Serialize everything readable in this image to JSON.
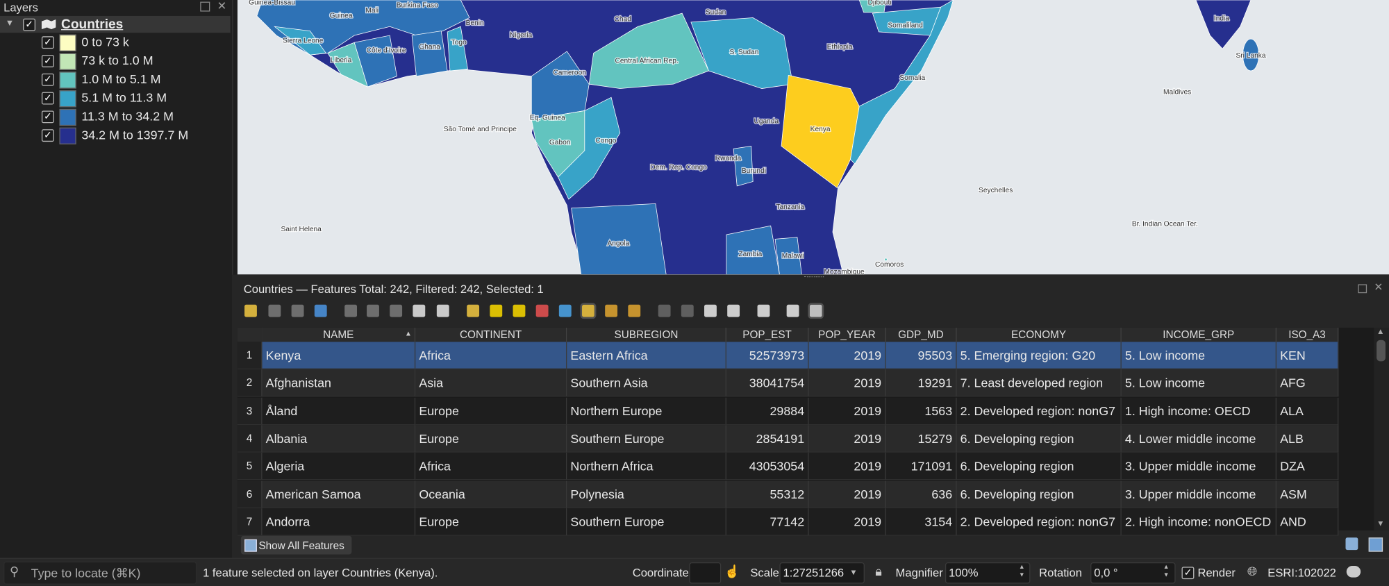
{
  "layers_panel": {
    "title": "Layers",
    "layer": "Countries",
    "legend": [
      {
        "label": "0 to 73 k",
        "color": "#fdfdc2"
      },
      {
        "label": "73 k to 1.0 M",
        "color": "#c2e6b6"
      },
      {
        "label": "1.0 M to 5.1 M",
        "color": "#62c4bf"
      },
      {
        "label": "5.1 M to 11.3 M",
        "color": "#38a3c8"
      },
      {
        "label": "11.3 M to 34.2 M",
        "color": "#2e72b6"
      },
      {
        "label": "34.2 M to 1397.7 M",
        "color": "#262f8e"
      }
    ]
  },
  "map": {
    "labels": [
      "Guinea-Bissau",
      "Guinea",
      "Mali",
      "Burkina Faso",
      "Djibouti",
      "Sierra Leone",
      "Benin",
      "Nigeria",
      "Chad",
      "Sudan",
      "Côte d'Ivoire",
      "Ghana",
      "Togo",
      "Liberia",
      "Somaliland",
      "India",
      "Cameroon",
      "Central African Rep.",
      "S. Sudan",
      "Ethiopia",
      "Somalia",
      "Sri Lanka",
      "Maldives",
      "Eq. Guinea",
      "Uganda",
      "Kenya",
      "São Tomé and Principe",
      "Gabon",
      "Congo",
      "Rwanda",
      "Burundi",
      "Dem. Rep. Congo",
      "Seychelles",
      "Tanzania",
      "Br. Indian Ocean Ter.",
      "Saint Helena",
      "Angola",
      "Zambia",
      "Malawi",
      "Comoros",
      "Mozambique"
    ]
  },
  "attribute_table": {
    "title": "Countries — Features Total: 242, Filtered: 242, Selected: 1",
    "columns": [
      "NAME",
      "CONTINENT",
      "SUBREGION",
      "POP_EST",
      "POP_YEAR",
      "GDP_MD",
      "ECONOMY",
      "INCOME_GRP",
      "ISO_A3"
    ],
    "row_headers": [
      1,
      2,
      3,
      4,
      5,
      6,
      7
    ],
    "rows": [
      [
        "Kenya",
        "Africa",
        "Eastern Africa",
        52573973,
        2019,
        95503,
        "5. Emerging region: G20",
        "5. Low income",
        "KEN"
      ],
      [
        "Afghanistan",
        "Asia",
        "Southern Asia",
        38041754,
        2019,
        19291,
        "7. Least developed region",
        "5. Low income",
        "AFG"
      ],
      [
        "Åland",
        "Europe",
        "Northern Europe",
        29884,
        2019,
        1563,
        "2. Developed region: nonG7",
        "1. High income: OECD",
        "ALA"
      ],
      [
        "Albania",
        "Europe",
        "Southern Europe",
        2854191,
        2019,
        15279,
        "6. Developing region",
        "4. Lower middle income",
        "ALB"
      ],
      [
        "Algeria",
        "Africa",
        "Northern Africa",
        43053054,
        2019,
        171091,
        "6. Developing region",
        "3. Upper middle income",
        "DZA"
      ],
      [
        "American Samoa",
        "Oceania",
        "Polynesia",
        55312,
        2019,
        636,
        "6. Developing region",
        "3. Upper middle income",
        "ASM"
      ],
      [
        "Andorra",
        "Europe",
        "Southern Europe",
        77142,
        2019,
        3154,
        "2. Developed region: nonG7",
        "2. High income: nonOECD",
        "AND"
      ]
    ]
  },
  "status_bar": {
    "filter_button": "Show All Features",
    "locator_placeholder": "Type to locate (⌘K)",
    "message": "1 feature selected on layer Countries (Kenya).",
    "coordinate_label": "Coordinate",
    "scale_label": "Scale",
    "scale": "1:27251266",
    "magnifier_label": "Magnifier",
    "magnifier": "100%",
    "rotation_label": "Rotation",
    "rotation": "0,0 °",
    "render_label": "Render",
    "crs": "ESRI:102022"
  }
}
